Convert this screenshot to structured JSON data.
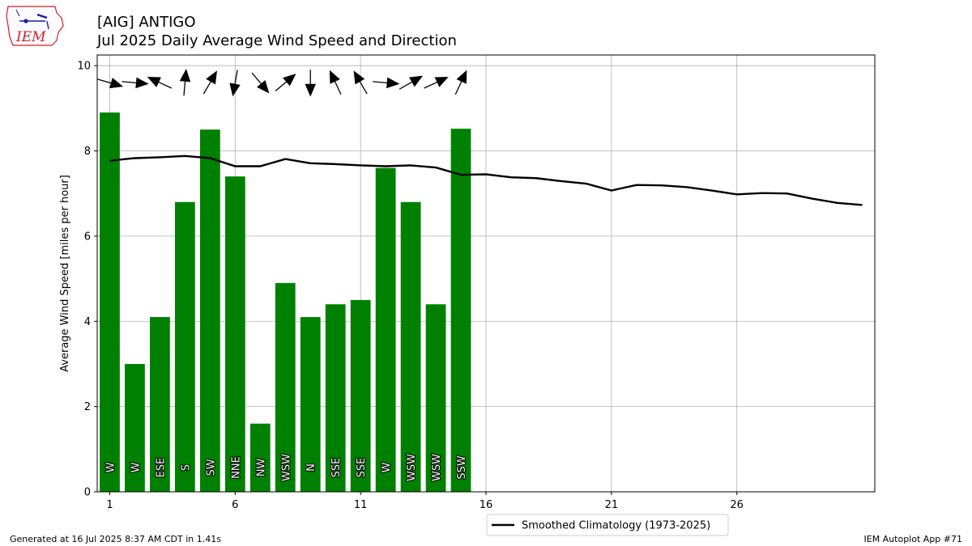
{
  "header": {
    "title_line1": "[AIG] ANTIGO",
    "title_line2": "Jul 2025 Daily Average Wind Speed and Direction"
  },
  "logo": {
    "text": "IEM"
  },
  "footer": {
    "generated": "Generated at 16 Jul 2025 8:37 AM CDT in 1.41s",
    "app": "IEM Autoplot App #71"
  },
  "colors": {
    "bar": "#008000",
    "climo_line": "#000000",
    "grid": "#b0b0b0",
    "logo_red": "#cc2222",
    "logo_blue": "#1a1aa8"
  },
  "chart_data": {
    "type": "bar",
    "ylabel": "Average Wind Speed [miles per hour]",
    "xlim": [
      0.5,
      31.5
    ],
    "ylim": [
      0,
      10.25
    ],
    "xticks": [
      1,
      6,
      11,
      16,
      21,
      26
    ],
    "yticks": [
      0,
      2,
      4,
      6,
      8,
      10
    ],
    "grid": true,
    "legend": {
      "placement": "bottom-center",
      "label": "Smoothed Climatology (1973-2025)"
    },
    "bars": {
      "days": [
        1,
        2,
        3,
        4,
        5,
        6,
        7,
        8,
        9,
        10,
        11,
        12,
        13,
        14,
        15
      ],
      "speeds": [
        8.9,
        3.0,
        4.1,
        6.8,
        8.5,
        7.4,
        1.6,
        4.9,
        4.1,
        4.4,
        4.5,
        7.6,
        6.8,
        4.4,
        8.52
      ],
      "directions": [
        "W",
        "W",
        "ESE",
        "S",
        "SW",
        "NNE",
        "NW",
        "WSW",
        "N",
        "SSE",
        "SSE",
        "W",
        "WSW",
        "WSW",
        "SSW"
      ],
      "arrow_degrees": [
        286,
        275,
        115,
        185,
        210,
        10,
        320,
        230,
        0,
        155,
        150,
        275,
        240,
        245,
        205
      ]
    },
    "climatology": {
      "days": [
        1,
        2,
        3,
        4,
        5,
        6,
        7,
        8,
        9,
        10,
        11,
        12,
        13,
        14,
        15,
        16,
        17,
        18,
        19,
        20,
        21,
        22,
        23,
        24,
        25,
        26,
        27,
        28,
        29,
        30,
        31
      ],
      "values": [
        7.77,
        7.83,
        7.85,
        7.88,
        7.83,
        7.64,
        7.64,
        7.81,
        7.71,
        7.69,
        7.66,
        7.64,
        7.66,
        7.61,
        7.44,
        7.45,
        7.38,
        7.36,
        7.29,
        7.23,
        7.07,
        7.2,
        7.19,
        7.15,
        7.07,
        6.98,
        7.01,
        7.0,
        6.88,
        6.78,
        6.73
      ]
    }
  }
}
